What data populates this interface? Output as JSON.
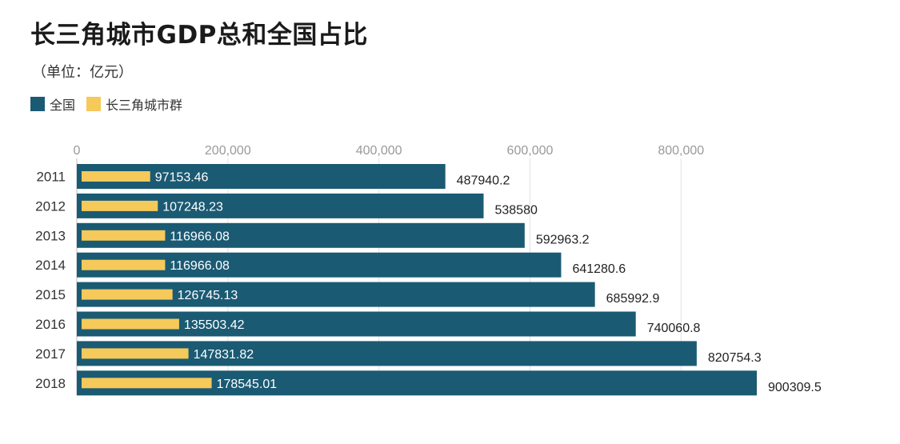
{
  "title": "长三角城市GDP总和全国占比",
  "subtitle": "（单位：亿元）",
  "legend": {
    "items": [
      {
        "label": "全国",
        "color": "#1b5a73"
      },
      {
        "label": "长三角城市群",
        "color": "#f5c95a"
      }
    ]
  },
  "chart_data": {
    "type": "bar",
    "orientation": "horizontal",
    "categories": [
      "2011",
      "2012",
      "2013",
      "2014",
      "2015",
      "2016",
      "2017",
      "2018"
    ],
    "series": [
      {
        "name": "全国",
        "color": "#1b5a73",
        "values": [
          487940.2,
          538580,
          592963.2,
          641280.6,
          685992.9,
          740060.8,
          820754.3,
          900309.5
        ],
        "labels": [
          "487940.2",
          "538580",
          "592963.2",
          "641280.6",
          "685992.9",
          "740060.8",
          "820754.3",
          "900309.5"
        ]
      },
      {
        "name": "长三角城市群",
        "color": "#f5c95a",
        "values": [
          97153.46,
          107248.23,
          116966.08,
          116966.08,
          126745.13,
          135503.42,
          147831.82,
          178545.01
        ],
        "labels": [
          "97153.46",
          "107248.23",
          "116966.08",
          "116966.08",
          "126745.13",
          "135503.42",
          "147831.82",
          "178545.01"
        ]
      }
    ],
    "x_ticks": [
      0,
      200000,
      400000,
      600000,
      800000
    ],
    "x_tick_labels": [
      "0",
      "200,000",
      "400,000",
      "600,000",
      "800,000"
    ],
    "xlim": [
      0,
      900309.5
    ],
    "grid": true,
    "legend_position": "top-left"
  }
}
